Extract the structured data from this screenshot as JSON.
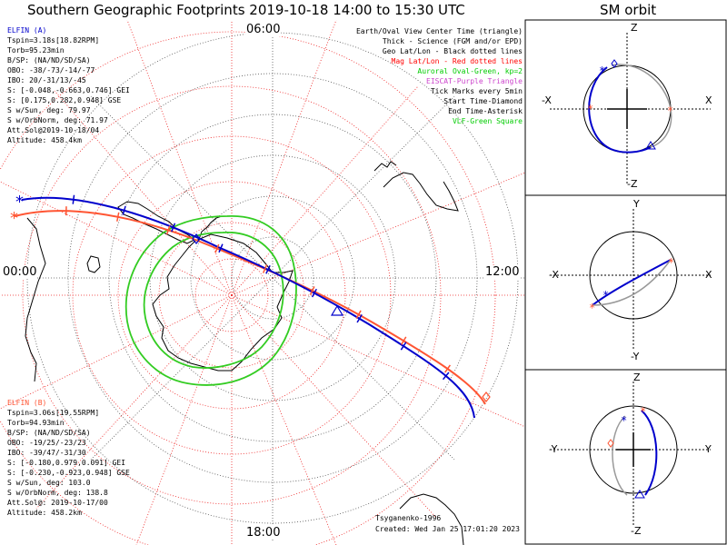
{
  "title": "Southern Geographic Footprints 2019-10-18 14:00 to 15:30 UTC",
  "orbit_title": "SM orbit",
  "hours": {
    "top": "06:00",
    "left": "00:00",
    "right": "12:00",
    "bottom": "18:00"
  },
  "elfin_a": {
    "name": "ELFIN (A)",
    "color": "#0000cc",
    "lines": [
      "Tspin=3.18s[18.82RPM]",
      "Torb=95.23min",
      "B/SP: (NA/ND/SD/SA)",
      "OBO: -38/-73/-14/-77",
      "IBO: 20/-31/13/-45",
      "S: [-0.048,-0.663,0.746] GEI",
      "S: [0.175,0.282,0.948] GSE",
      "S w/Sun, deg: 79.97",
      "S w/OrbNorm, deg: 71.97",
      "Att.Sol@2019-10-18/04",
      "Altitude: 458.4km"
    ]
  },
  "elfin_b": {
    "name": "ELFIN (B)",
    "color": "#ff5533",
    "lines": [
      "Tspin=3.06s[19.55RPM]",
      "Torb=94.93min",
      "B/SP: (NA/ND/SD/SA)",
      "OBO: -19/25/-23/23",
      "IBO: -39/47/-31/30",
      "S: [-0.180,0.979,0.091] GEI",
      "S: [-0.230,-0.923,0.948] GSE",
      "S w/Sun, deg: 103.0",
      "S w/OrbNorm, deg: 138.8",
      "Att.Sol@: 2019-10-17/00",
      "Altitude: 458.2km"
    ]
  },
  "legend": [
    {
      "text": "Earth/Oval View Center Time (triangle)",
      "color": "#000000"
    },
    {
      "text": "Thick - Science (FGM and/or EPD)",
      "color": "#000000"
    },
    {
      "text": "Geo Lat/Lon - Black dotted lines",
      "color": "#000000"
    },
    {
      "text": "Mag Lat/Lon - Red dotted lines",
      "color": "#ff0000"
    },
    {
      "text": "Auroral Oval-Green, kp=2",
      "color": "#00cc00"
    },
    {
      "text": "EISCAT-Purple Triangle",
      "color": "#cc44cc"
    },
    {
      "text": "Tick Marks every 5min",
      "color": "#000000"
    },
    {
      "text": "Start Time-Diamond",
      "color": "#000000"
    },
    {
      "text": "End Time-Asterisk",
      "color": "#000000"
    },
    {
      "text": "VLF-Green Square",
      "color": "#00cc00"
    }
  ],
  "footer": {
    "model": "Tsyganenko-1996",
    "created": "Created: Wed Jan 25 17:01:20 2023"
  },
  "orbit_panels": [
    {
      "top": "Z",
      "bottom": "-Z",
      "left": "-X",
      "right": "X"
    },
    {
      "top": "Y",
      "bottom": "-Y",
      "left": "-X",
      "right": "X"
    },
    {
      "top": "Z",
      "bottom": "-Z",
      "left": "-Y",
      "right": "Y"
    }
  ]
}
